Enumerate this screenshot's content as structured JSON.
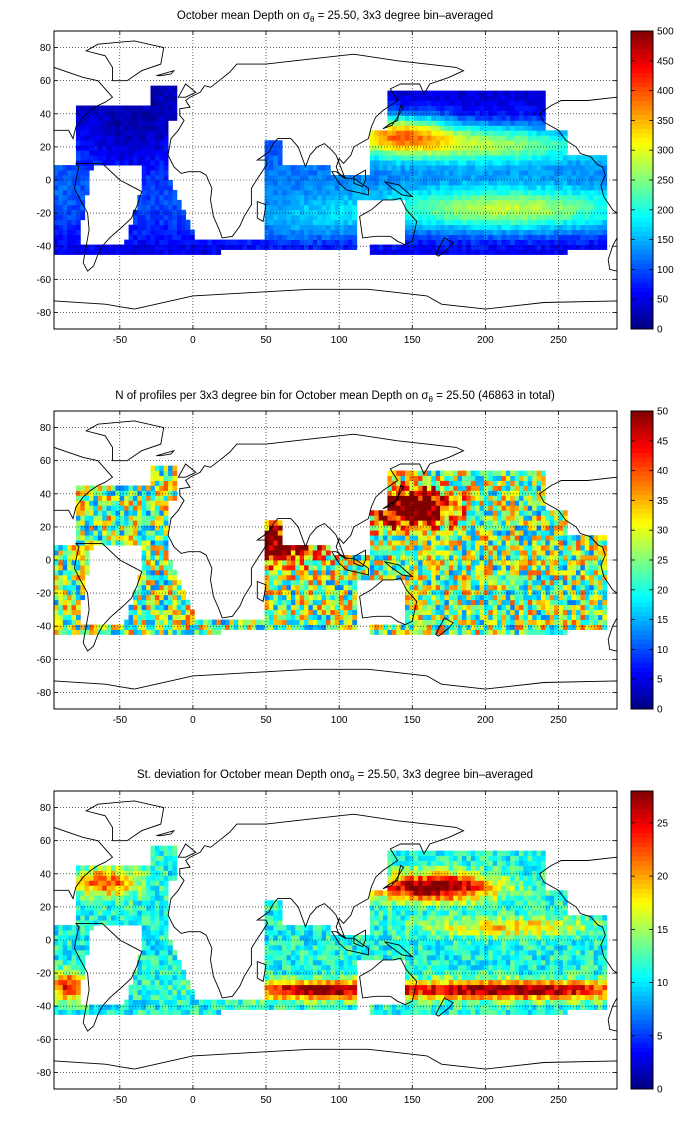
{
  "figure": {
    "background": "#ffffff"
  },
  "chart_data": [
    {
      "type": "heatmap",
      "title_pre": "October mean Depth on ",
      "title_sym": "σ",
      "title_sub": "θ",
      "title_post": " = 25.50, 3x3 degree bin–averaged",
      "xlabel": "",
      "ylabel": "",
      "xlim": [
        -95,
        290
      ],
      "ylim": [
        -90,
        90
      ],
      "xticks": [
        -50,
        0,
        50,
        100,
        150,
        200,
        250
      ],
      "yticks": [
        80,
        60,
        40,
        20,
        0,
        -20,
        -40,
        -60,
        -80
      ],
      "grid": "dotted",
      "colormap": "jet",
      "clim": [
        0,
        500
      ],
      "cticks": [
        0,
        50,
        100,
        150,
        200,
        250,
        300,
        350,
        400,
        450,
        500
      ],
      "field": "depth",
      "bin_size_deg": 3
    },
    {
      "type": "heatmap",
      "title_pre": "N of profiles per 3x3 degree bin for October mean Depth on ",
      "title_sym": "σ",
      "title_sub": "θ",
      "title_post": " = 25.50 (46863 in total)",
      "xlabel": "",
      "ylabel": "",
      "xlim": [
        -95,
        290
      ],
      "ylim": [
        -90,
        90
      ],
      "xticks": [
        -50,
        0,
        50,
        100,
        150,
        200,
        250
      ],
      "yticks": [
        80,
        60,
        40,
        20,
        0,
        -20,
        -40,
        -60,
        -80
      ],
      "grid": "dotted",
      "colormap": "jet",
      "clim": [
        0,
        50
      ],
      "cticks": [
        0,
        5,
        10,
        15,
        20,
        25,
        30,
        35,
        40,
        45,
        50
      ],
      "field": "count",
      "bin_size_deg": 3,
      "total_profiles": 46863
    },
    {
      "type": "heatmap",
      "title_pre": "St. deviation for October mean Depth on",
      "title_sym": "σ",
      "title_sub": "θ",
      "title_post": " = 25.50, 3x3 degree bin–averaged",
      "xlabel": "",
      "ylabel": "",
      "xlim": [
        -95,
        290
      ],
      "ylim": [
        -90,
        90
      ],
      "xticks": [
        -50,
        0,
        50,
        100,
        150,
        200,
        250
      ],
      "yticks": [
        80,
        60,
        40,
        20,
        0,
        -20,
        -40,
        -60,
        -80
      ],
      "grid": "dotted",
      "colormap": "jet",
      "clim": [
        0,
        28
      ],
      "cticks": [
        0,
        5,
        10,
        15,
        20,
        25
      ],
      "field": "std",
      "bin_size_deg": 3
    }
  ]
}
